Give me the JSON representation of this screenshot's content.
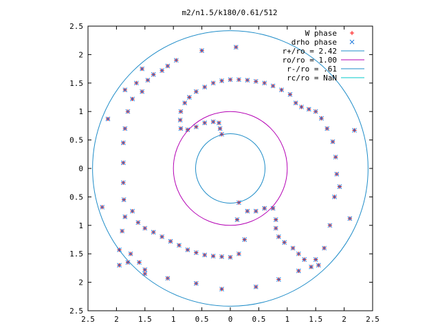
{
  "chart_data": {
    "type": "scatter",
    "title": "m2/n1.5/k180/0.61/512",
    "xlabel": "",
    "ylabel": "",
    "xlim": [
      -2.5,
      2.5
    ],
    "ylim": [
      -2.5,
      2.5
    ],
    "x_ticks": [
      -2.5,
      -2,
      -1.5,
      -1,
      -0.5,
      0,
      0.5,
      1,
      1.5,
      2,
      2.5
    ],
    "y_ticks": [
      -2.5,
      -2,
      -1.5,
      -1,
      -0.5,
      0,
      0.5,
      1,
      1.5,
      2,
      2.5
    ],
    "x_tick_labels": [
      "2.5",
      "2",
      "1.5",
      "1",
      "0.5",
      "0",
      "0.5",
      "1",
      "1.5",
      "2",
      "2.5"
    ],
    "y_tick_labels": [
      "2.5",
      "2",
      "1.5",
      "1",
      "0.5",
      "0",
      "0.5",
      "1",
      "1.5",
      "2",
      "2.5"
    ],
    "grid": false,
    "legend_position": "top-right",
    "legend": [
      {
        "label": "W phase",
        "marker": "plus",
        "color": "#ff0000"
      },
      {
        "label": "drho phase",
        "marker": "cross",
        "color": "#1e78dc"
      },
      {
        "label": "r+/ro = 2.42",
        "marker": "line",
        "color": "#1e8cc8"
      },
      {
        "label": "ro/ro = 1.00",
        "marker": "line",
        "color": "#b400b4"
      },
      {
        "label": "r-/ro = .61",
        "marker": "line",
        "color": "#1e8cc8"
      },
      {
        "label": "rc/ro = NaN",
        "marker": "line",
        "color": "#00c8c8"
      }
    ],
    "circles": [
      {
        "label": "r+/ro",
        "r": 2.42,
        "color": "#1e8cc8"
      },
      {
        "label": "ro/ro",
        "r": 1.0,
        "color": "#b400b4"
      },
      {
        "label": "r-/ro",
        "r": 0.61,
        "color": "#1e8cc8"
      }
    ],
    "series": [
      {
        "name": "W phase",
        "color": "#ff0000",
        "marker": "plus",
        "points": [
          [
            -0.15,
            0.6
          ],
          [
            -0.18,
            0.7
          ],
          [
            -0.2,
            0.8
          ],
          [
            -0.3,
            0.82
          ],
          [
            -0.45,
            0.8
          ],
          [
            -0.6,
            0.73
          ],
          [
            -0.75,
            0.68
          ],
          [
            -0.87,
            0.7
          ],
          [
            -0.88,
            0.85
          ],
          [
            -0.87,
            1.0
          ],
          [
            -0.8,
            1.15
          ],
          [
            -0.72,
            1.25
          ],
          [
            -0.6,
            1.35
          ],
          [
            -0.45,
            1.43
          ],
          [
            -0.3,
            1.5
          ],
          [
            -0.15,
            1.54
          ],
          [
            0.0,
            1.56
          ],
          [
            0.15,
            1.56
          ],
          [
            0.3,
            1.55
          ],
          [
            0.45,
            1.53
          ],
          [
            0.6,
            1.5
          ],
          [
            0.75,
            1.45
          ],
          [
            0.9,
            1.38
          ],
          [
            1.05,
            1.3
          ],
          [
            1.15,
            1.15
          ],
          [
            1.25,
            1.08
          ],
          [
            1.38,
            1.04
          ],
          [
            1.5,
            1.0
          ],
          [
            1.6,
            0.88
          ],
          [
            1.7,
            0.7
          ],
          [
            1.8,
            0.47
          ],
          [
            1.85,
            0.2
          ],
          [
            1.87,
            -0.1
          ],
          [
            1.83,
            -0.5
          ],
          [
            1.75,
            -1.0
          ],
          [
            1.65,
            -1.4
          ],
          [
            1.55,
            -1.7
          ],
          [
            1.42,
            -1.73
          ],
          [
            1.3,
            -1.6
          ],
          [
            1.2,
            -1.5
          ],
          [
            1.1,
            -1.4
          ],
          [
            0.95,
            -1.3
          ],
          [
            0.85,
            -1.2
          ],
          [
            0.8,
            -1.05
          ],
          [
            0.8,
            -0.9
          ],
          [
            0.75,
            -0.7
          ],
          [
            0.6,
            -0.7
          ],
          [
            0.45,
            -0.75
          ],
          [
            0.3,
            -0.75
          ],
          [
            0.15,
            -0.6
          ],
          [
            0.12,
            -0.9
          ],
          [
            0.25,
            -1.25
          ],
          [
            0.15,
            -1.5
          ],
          [
            0.0,
            -1.56
          ],
          [
            -0.15,
            -1.55
          ],
          [
            -0.3,
            -1.54
          ],
          [
            -0.45,
            -1.52
          ],
          [
            -0.6,
            -1.48
          ],
          [
            -0.75,
            -1.43
          ],
          [
            -0.9,
            -1.35
          ],
          [
            -1.05,
            -1.28
          ],
          [
            -1.2,
            -1.2
          ],
          [
            -1.35,
            -1.12
          ],
          [
            -1.5,
            -1.05
          ],
          [
            -1.62,
            -0.95
          ],
          [
            -1.72,
            -0.75
          ],
          [
            -1.75,
            -1.5
          ],
          [
            -1.6,
            -1.65
          ],
          [
            -1.5,
            -1.78
          ],
          [
            -1.8,
            -1.65
          ],
          [
            -1.95,
            -1.43
          ],
          [
            -1.95,
            -1.7
          ],
          [
            -1.9,
            -1.1
          ],
          [
            -2.25,
            -0.68
          ],
          [
            -1.85,
            -0.85
          ],
          [
            -1.87,
            -0.55
          ],
          [
            -1.88,
            -0.25
          ],
          [
            -1.88,
            0.1
          ],
          [
            -1.88,
            0.45
          ],
          [
            -1.85,
            0.7
          ],
          [
            -1.8,
            1.0
          ],
          [
            -1.72,
            1.22
          ],
          [
            -1.65,
            1.5
          ],
          [
            -1.55,
            1.75
          ],
          [
            -1.55,
            1.35
          ],
          [
            -1.45,
            1.55
          ],
          [
            -1.35,
            1.65
          ],
          [
            -1.2,
            1.72
          ],
          [
            -1.1,
            1.8
          ],
          [
            -0.95,
            1.9
          ],
          [
            -0.5,
            2.07
          ],
          [
            0.1,
            2.13
          ],
          [
            -2.15,
            0.87
          ],
          [
            -1.85,
            1.38
          ],
          [
            2.18,
            0.67
          ],
          [
            2.1,
            -0.88
          ],
          [
            -1.5,
            -1.85
          ],
          [
            -1.1,
            -1.93
          ],
          [
            -0.6,
            -2.02
          ],
          [
            -0.15,
            -2.12
          ],
          [
            0.45,
            -2.08
          ],
          [
            0.85,
            -1.95
          ],
          [
            1.2,
            -1.8
          ],
          [
            1.5,
            -1.6
          ],
          [
            1.92,
            -0.32
          ]
        ]
      },
      {
        "name": "drho phase",
        "color": "#1e78dc",
        "marker": "cross",
        "points": [
          [
            -0.15,
            0.6
          ],
          [
            -0.18,
            0.7
          ],
          [
            -0.2,
            0.8
          ],
          [
            -0.3,
            0.82
          ],
          [
            -0.45,
            0.8
          ],
          [
            -0.6,
            0.73
          ],
          [
            -0.75,
            0.68
          ],
          [
            -0.87,
            0.7
          ],
          [
            -0.88,
            0.85
          ],
          [
            -0.87,
            1.0
          ],
          [
            -0.8,
            1.15
          ],
          [
            -0.72,
            1.25
          ],
          [
            -0.6,
            1.35
          ],
          [
            -0.45,
            1.43
          ],
          [
            -0.3,
            1.5
          ],
          [
            -0.15,
            1.54
          ],
          [
            0.0,
            1.56
          ],
          [
            0.15,
            1.56
          ],
          [
            0.3,
            1.55
          ],
          [
            0.45,
            1.53
          ],
          [
            0.6,
            1.5
          ],
          [
            0.75,
            1.45
          ],
          [
            0.9,
            1.38
          ],
          [
            1.05,
            1.3
          ],
          [
            1.15,
            1.15
          ],
          [
            1.25,
            1.08
          ],
          [
            1.38,
            1.04
          ],
          [
            1.5,
            1.0
          ],
          [
            1.6,
            0.88
          ],
          [
            1.7,
            0.7
          ],
          [
            1.8,
            0.47
          ],
          [
            1.85,
            0.2
          ],
          [
            1.87,
            -0.1
          ],
          [
            1.83,
            -0.5
          ],
          [
            1.75,
            -1.0
          ],
          [
            1.65,
            -1.4
          ],
          [
            1.55,
            -1.7
          ],
          [
            1.42,
            -1.73
          ],
          [
            1.3,
            -1.6
          ],
          [
            1.2,
            -1.5
          ],
          [
            1.1,
            -1.4
          ],
          [
            0.95,
            -1.3
          ],
          [
            0.85,
            -1.2
          ],
          [
            0.8,
            -1.05
          ],
          [
            0.8,
            -0.9
          ],
          [
            0.75,
            -0.7
          ],
          [
            0.6,
            -0.7
          ],
          [
            0.45,
            -0.75
          ],
          [
            0.3,
            -0.75
          ],
          [
            0.15,
            -0.6
          ],
          [
            0.12,
            -0.9
          ],
          [
            0.25,
            -1.25
          ],
          [
            0.15,
            -1.5
          ],
          [
            0.0,
            -1.56
          ],
          [
            -0.15,
            -1.55
          ],
          [
            -0.3,
            -1.54
          ],
          [
            -0.45,
            -1.52
          ],
          [
            -0.6,
            -1.48
          ],
          [
            -0.75,
            -1.43
          ],
          [
            -0.9,
            -1.35
          ],
          [
            -1.05,
            -1.28
          ],
          [
            -1.2,
            -1.2
          ],
          [
            -1.35,
            -1.12
          ],
          [
            -1.5,
            -1.05
          ],
          [
            -1.62,
            -0.95
          ],
          [
            -1.72,
            -0.75
          ],
          [
            -1.75,
            -1.5
          ],
          [
            -1.6,
            -1.65
          ],
          [
            -1.5,
            -1.78
          ],
          [
            -1.8,
            -1.65
          ],
          [
            -1.95,
            -1.43
          ],
          [
            -1.95,
            -1.7
          ],
          [
            -1.9,
            -1.1
          ],
          [
            -2.25,
            -0.68
          ],
          [
            -1.85,
            -0.85
          ],
          [
            -1.87,
            -0.55
          ],
          [
            -1.88,
            -0.25
          ],
          [
            -1.88,
            0.1
          ],
          [
            -1.88,
            0.45
          ],
          [
            -1.85,
            0.7
          ],
          [
            -1.8,
            1.0
          ],
          [
            -1.72,
            1.22
          ],
          [
            -1.65,
            1.5
          ],
          [
            -1.55,
            1.75
          ],
          [
            -1.55,
            1.35
          ],
          [
            -1.45,
            1.55
          ],
          [
            -1.35,
            1.65
          ],
          [
            -1.2,
            1.72
          ],
          [
            -1.1,
            1.8
          ],
          [
            -0.95,
            1.9
          ],
          [
            -0.5,
            2.07
          ],
          [
            0.1,
            2.13
          ],
          [
            -2.15,
            0.87
          ],
          [
            -1.85,
            1.38
          ],
          [
            2.18,
            0.67
          ],
          [
            2.1,
            -0.88
          ],
          [
            -1.5,
            -1.85
          ],
          [
            -1.1,
            -1.93
          ],
          [
            -0.6,
            -2.02
          ],
          [
            -0.15,
            -2.12
          ],
          [
            0.45,
            -2.08
          ],
          [
            0.85,
            -1.95
          ],
          [
            1.2,
            -1.8
          ],
          [
            1.5,
            -1.6
          ],
          [
            1.92,
            -0.32
          ]
        ]
      }
    ]
  }
}
